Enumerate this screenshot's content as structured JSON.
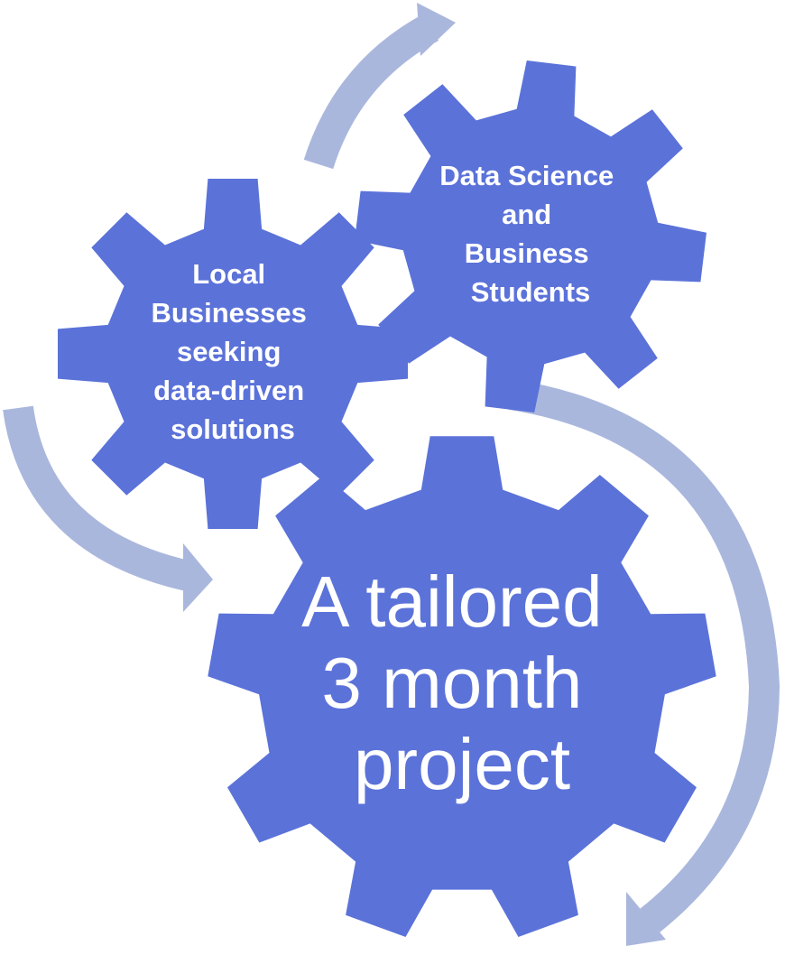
{
  "colors": {
    "gear": "#5b72d9",
    "arrow": "#aab7dd",
    "text": "#ffffff",
    "background": "#ffffff"
  },
  "gears": {
    "businesses": {
      "lines": [
        "Local",
        "Businesses",
        "seeking",
        "data-driven",
        "solutions"
      ]
    },
    "students": {
      "lines": [
        "Data Science",
        "and",
        "Business",
        "Students"
      ]
    },
    "project": {
      "lines": [
        "A tailored",
        "3 month",
        "project"
      ]
    }
  }
}
